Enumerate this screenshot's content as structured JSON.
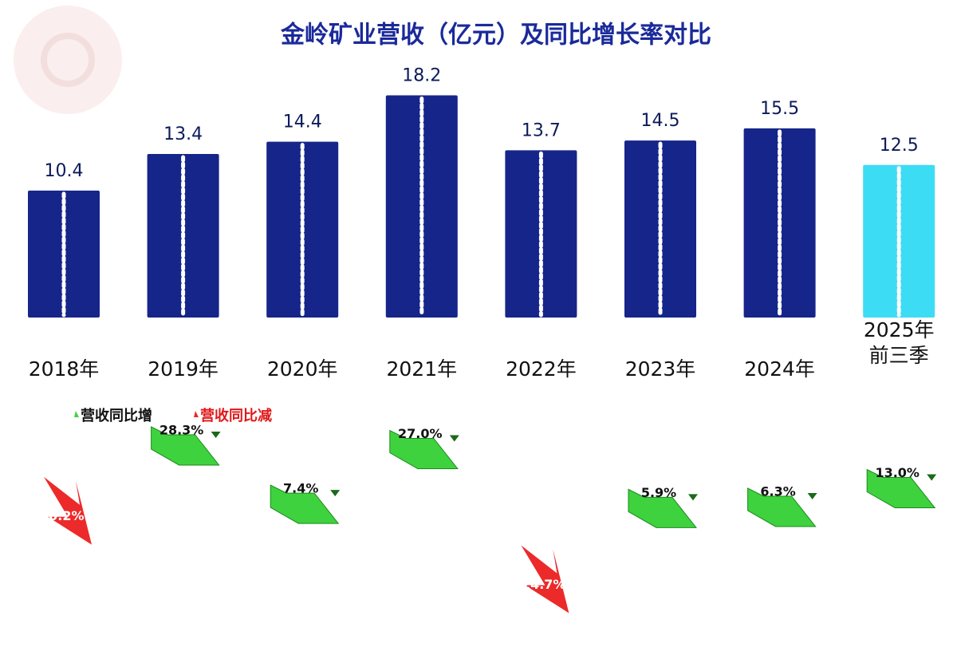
{
  "chart_data": [
    {
      "type": "bar",
      "title": "金岭矿业营收（亿元）及同比增长率对比",
      "categories": [
        "2018年",
        "2019年",
        "2020年",
        "2021年",
        "2022年",
        "2023年",
        "2024年",
        "2025年前三季"
      ],
      "values": [
        10.4,
        13.4,
        14.4,
        18.2,
        13.7,
        14.5,
        15.5,
        12.5
      ],
      "colors": [
        "#15258a",
        "#15258a",
        "#15258a",
        "#15258a",
        "#15258a",
        "#15258a",
        "#15258a",
        "#3ddcf5"
      ]
    },
    {
      "type": "arrow",
      "series": [
        {
          "name": "营收同比增",
          "color": "#3fd23f"
        },
        {
          "name": "营收同比减",
          "color": "#ec2a2a"
        }
      ],
      "values": [
        -0.2,
        28.3,
        7.4,
        27,
        -24.7,
        5.9,
        6.3,
        13
      ],
      "value_labels": [
        "-0.2%",
        "28.3%",
        "7.4%",
        "27.0%",
        "-24.7%",
        "5.9%",
        "6.3%",
        "13.0%"
      ]
    }
  ]
}
